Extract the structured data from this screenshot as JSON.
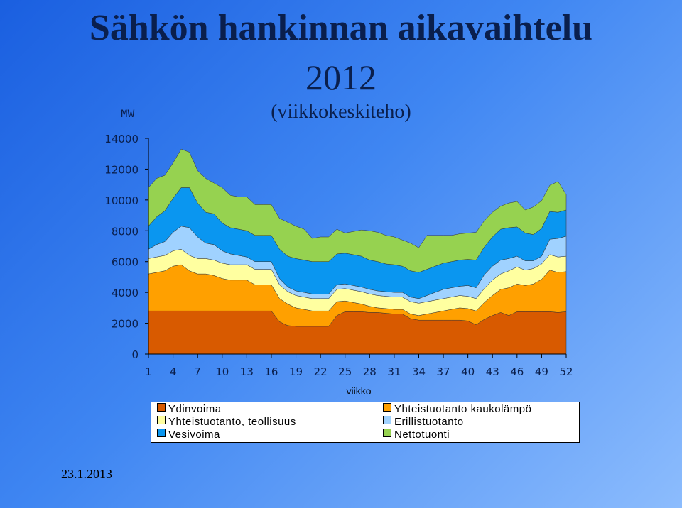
{
  "titles": {
    "line1": "Sähkön hankinnan aikavaihtelu",
    "line2": "2012",
    "line3": "(viikkokeskiteho)"
  },
  "footer_date": "23.1.2013",
  "colors": {
    "Ydinvoima": "#d85a00",
    "Yhteistuotanto kaukolämpö": "#ffa000",
    "Yhteistuotanto, teollisuus": "#ffffa0",
    "Erillistuotanto": "#a0d2ff",
    "Vesivoima": "#0a96f0",
    "Nettotuonti": "#96d250"
  },
  "chart_data": {
    "type": "area",
    "stacked": true,
    "ylabel": "MW",
    "xlabel": "viikko",
    "ylim": [
      0,
      14000
    ],
    "yticks": [
      0,
      2000,
      4000,
      6000,
      8000,
      10000,
      12000,
      14000
    ],
    "xticks": [
      1,
      4,
      7,
      10,
      13,
      16,
      19,
      22,
      25,
      28,
      31,
      34,
      37,
      40,
      43,
      46,
      49,
      52
    ],
    "grid": false,
    "legend": "bottom",
    "x": [
      1,
      2,
      3,
      4,
      5,
      6,
      7,
      8,
      9,
      10,
      11,
      12,
      13,
      14,
      15,
      16,
      17,
      18,
      19,
      20,
      21,
      22,
      23,
      24,
      25,
      26,
      27,
      28,
      29,
      30,
      31,
      32,
      33,
      34,
      35,
      36,
      37,
      38,
      39,
      40,
      41,
      42,
      43,
      44,
      45,
      46,
      47,
      48,
      49,
      50,
      51,
      52
    ],
    "series": [
      {
        "name": "Ydinvoima",
        "values": [
          2800,
          2800,
          2800,
          2800,
          2800,
          2800,
          2800,
          2800,
          2800,
          2800,
          2800,
          2800,
          2800,
          2800,
          2800,
          2800,
          2100,
          1850,
          1800,
          1800,
          1800,
          1800,
          1800,
          2500,
          2750,
          2750,
          2750,
          2700,
          2700,
          2650,
          2600,
          2600,
          2300,
          2200,
          2200,
          2200,
          2200,
          2200,
          2200,
          2150,
          1900,
          2250,
          2500,
          2700,
          2500,
          2750,
          2750,
          2750,
          2750,
          2750,
          2700,
          2750
        ]
      },
      {
        "name": "Yhteistuotanto kaukolämpö",
        "values": [
          2400,
          2500,
          2600,
          2900,
          3000,
          2600,
          2400,
          2400,
          2300,
          2100,
          2000,
          2000,
          2000,
          1700,
          1700,
          1700,
          1500,
          1400,
          1200,
          1100,
          1000,
          1000,
          1000,
          900,
          700,
          600,
          500,
          400,
          300,
          300,
          300,
          300,
          300,
          300,
          400,
          500,
          600,
          700,
          800,
          800,
          900,
          1100,
          1300,
          1500,
          1800,
          1800,
          1700,
          1800,
          2100,
          2700,
          2600,
          2600
        ]
      },
      {
        "name": "Yhteistuotanto, teollisuus",
        "values": [
          1000,
          1000,
          1000,
          1000,
          1000,
          1000,
          1000,
          1000,
          1000,
          1000,
          1000,
          1000,
          1000,
          1000,
          1000,
          1000,
          900,
          800,
          800,
          800,
          800,
          800,
          800,
          800,
          800,
          800,
          800,
          800,
          800,
          800,
          800,
          800,
          800,
          800,
          800,
          800,
          800,
          800,
          800,
          800,
          800,
          900,
          1000,
          1000,
          1100,
          1100,
          1000,
          1000,
          1000,
          1000,
          1000,
          1000
        ]
      },
      {
        "name": "Erillistuotanto",
        "values": [
          600,
          800,
          900,
          1200,
          1500,
          1800,
          1400,
          1000,
          1000,
          800,
          700,
          600,
          500,
          500,
          500,
          500,
          400,
          300,
          300,
          300,
          300,
          300,
          300,
          300,
          300,
          300,
          300,
          300,
          300,
          300,
          300,
          300,
          300,
          300,
          400,
          500,
          600,
          600,
          600,
          700,
          700,
          900,
          900,
          900,
          800,
          700,
          600,
          500,
          500,
          1000,
          1200,
          1300
        ]
      },
      {
        "name": "Vesivoima",
        "values": [
          1500,
          1800,
          2000,
          2200,
          2500,
          2600,
          2200,
          2000,
          2000,
          1800,
          1700,
          1700,
          1700,
          1700,
          1700,
          1700,
          1900,
          2000,
          2100,
          2100,
          2100,
          2100,
          2100,
          2000,
          2000,
          2000,
          2000,
          1900,
          1900,
          1800,
          1800,
          1700,
          1700,
          1700,
          1700,
          1700,
          1700,
          1700,
          1700,
          1700,
          1800,
          1800,
          1900,
          2000,
          2000,
          1900,
          1800,
          1700,
          1800,
          1800,
          1700,
          1700
        ]
      },
      {
        "name": "Nettotuonti",
        "values": [
          2500,
          2500,
          2300,
          2300,
          2500,
          2300,
          2100,
          2200,
          2000,
          2300,
          2100,
          2100,
          2200,
          2000,
          2000,
          2000,
          2000,
          2200,
          2100,
          2000,
          1500,
          1600,
          1600,
          1600,
          1300,
          1500,
          1700,
          1900,
          1900,
          1850,
          1800,
          1700,
          1800,
          1600,
          2200,
          2000,
          1800,
          1700,
          1700,
          1700,
          1800,
          1700,
          1600,
          1500,
          1600,
          1650,
          1500,
          1800,
          1800,
          1700,
          2000,
          1000
        ]
      }
    ]
  }
}
